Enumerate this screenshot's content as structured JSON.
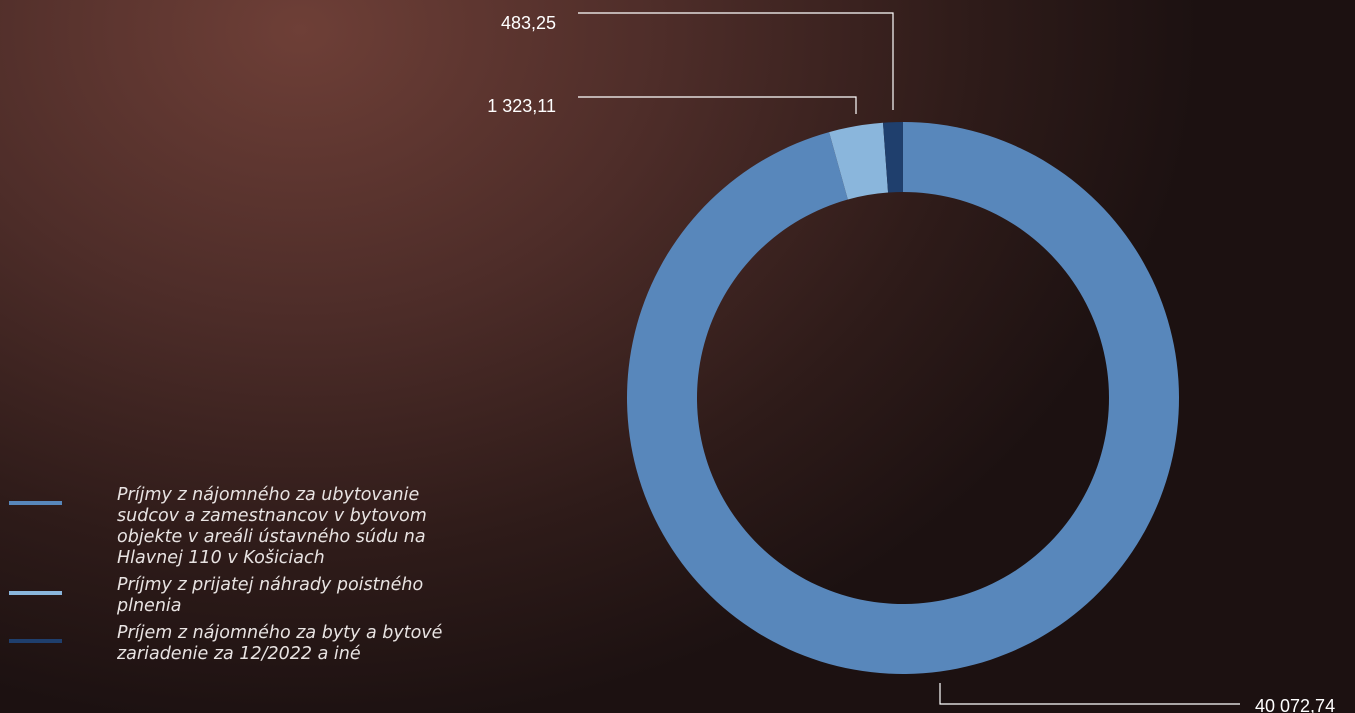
{
  "chart_data": {
    "type": "pie",
    "donut": true,
    "labels": [
      "Príjmy z nájomného za ubytovanie sudcov a zamestnancov v bytovom objekte v areáli ústavného súdu na Hlavnej 110 v Košiciach",
      "Príjmy z prijatej náhrady poistného plnenia",
      "Príjem z nájomného za byty a bytové zariadenie za 12/2022 a iné"
    ],
    "values": [
      40072.74,
      1323.11,
      483.25
    ],
    "value_labels": [
      "40 072,74",
      "1 323,11",
      "483,25"
    ],
    "colors": [
      "#5887bb",
      "#8ab6dc",
      "#1f3f6d"
    ],
    "legend_position": "bottom-left"
  }
}
